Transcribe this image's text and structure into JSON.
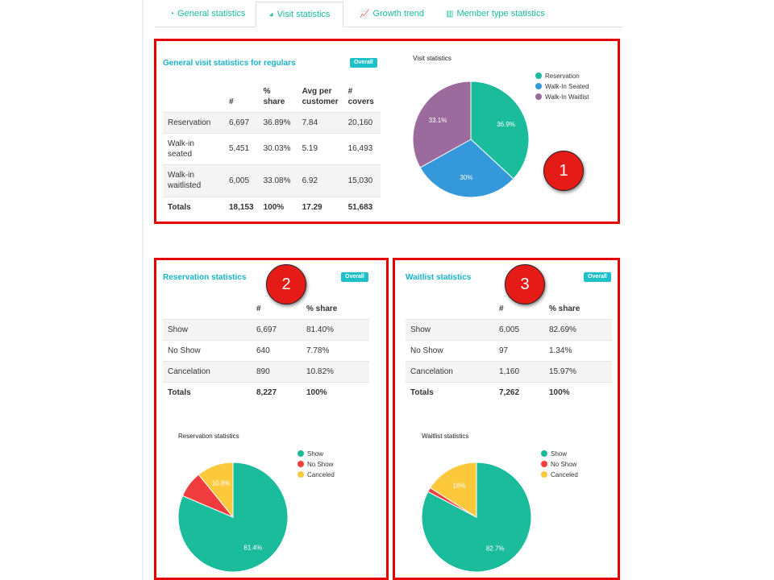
{
  "tabs": [
    {
      "label": "General statistics",
      "icon": "dashboard-icon",
      "active": false
    },
    {
      "label": "Visit statistics",
      "icon": "pie-chart-icon",
      "active": true
    },
    {
      "label": "Growth trend",
      "icon": "line-chart-icon",
      "active": false
    },
    {
      "label": "Member type statistics",
      "icon": "bar-chart-icon",
      "active": false
    }
  ],
  "markers": [
    "1",
    "2",
    "3"
  ],
  "visit": {
    "title": "General visit statistics for regulars",
    "badge": "Overall",
    "headers": [
      "",
      "#",
      "% share",
      "Avg per customer",
      "# covers"
    ],
    "rows": [
      [
        "Reservation",
        "6,697",
        "36.89%",
        "7.84",
        "20,160"
      ],
      [
        "Walk-in seated",
        "5,451",
        "30.03%",
        "5.19",
        "16,493"
      ],
      [
        "Walk-in waitlisted",
        "6,005",
        "33.08%",
        "6.92",
        "15,030"
      ]
    ],
    "totals": [
      "Totals",
      "18,153",
      "100%",
      "17.29",
      "51,683"
    ]
  },
  "reservation": {
    "title": "Reservation statistics",
    "badge": "Overall",
    "headers": [
      "",
      "#",
      "% share"
    ],
    "rows": [
      [
        "Show",
        "6,697",
        "81.40%"
      ],
      [
        "No Show",
        "640",
        "7.78%"
      ],
      [
        "Cancelation",
        "890",
        "10.82%"
      ]
    ],
    "totals": [
      "Totals",
      "8,227",
      "100%"
    ]
  },
  "waitlist": {
    "title": "Waitlist statistics",
    "badge": "Overall",
    "headers": [
      "",
      "#",
      "% share"
    ],
    "rows": [
      [
        "Show",
        "6,005",
        "82.69%"
      ],
      [
        "No Show",
        "97",
        "1.34%"
      ],
      [
        "Cancelation",
        "1,160",
        "15.97%"
      ]
    ],
    "totals": [
      "Totals",
      "7,262",
      "100%"
    ]
  },
  "chart_data": [
    {
      "type": "pie",
      "title": "Visit statistics",
      "legend_position": "top-right",
      "categories": [
        "Reservation",
        "Walk-In Seated",
        "Walk-In Waitlist"
      ],
      "values": [
        36.9,
        30,
        33.1
      ],
      "labels": [
        "36.9%",
        "30%",
        "33.1%"
      ],
      "colors": [
        "#1abc9c",
        "#3498db",
        "#9b6b9e"
      ]
    },
    {
      "type": "pie",
      "title": "Reservation statistics",
      "legend_position": "top-right",
      "categories": [
        "Show",
        "No Show",
        "Canceled"
      ],
      "values": [
        81.4,
        7.8,
        10.8
      ],
      "labels": [
        "81.4%",
        "",
        "10.8%"
      ],
      "colors": [
        "#1abc9c",
        "#f03c3c",
        "#fcc93c"
      ]
    },
    {
      "type": "pie",
      "title": "Waitlist statistics",
      "legend_position": "top-right",
      "categories": [
        "Show",
        "No Show",
        "Canceled"
      ],
      "values": [
        82.7,
        1.3,
        16
      ],
      "labels": [
        "82.7%",
        "",
        "16%"
      ],
      "colors": [
        "#1abc9c",
        "#f03c3c",
        "#fcc93c"
      ]
    }
  ]
}
